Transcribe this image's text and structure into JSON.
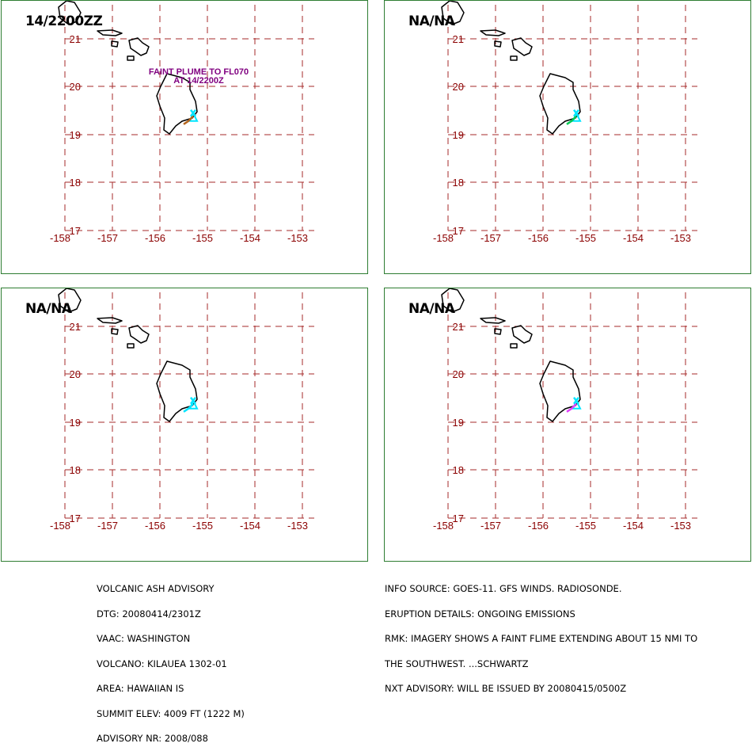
{
  "panels": [
    {
      "title": "14/2200ZZ",
      "annotation": [
        "FAINT PLUME TO FL070",
        "AT 14/2200Z"
      ],
      "plume_color": "#b5651d"
    },
    {
      "title": "NA/NA",
      "annotation": [],
      "plume_color": "#00c853"
    },
    {
      "title": "NA/NA",
      "annotation": [],
      "plume_color": "#00e5ff"
    },
    {
      "title": "NA/NA",
      "annotation": [],
      "plume_color": "#e040fb"
    }
  ],
  "axes": {
    "lon_labels": [
      "-158",
      "-157",
      "-156",
      "-155",
      "-154",
      "-153"
    ],
    "lat_labels": [
      "21",
      "20",
      "19",
      "18",
      "17"
    ],
    "label_color": "#8b0000",
    "grid_color": "#a52a2a",
    "annotation_color": "#800080",
    "volcano_marker_color": "#00e5ff"
  },
  "advisory_left": [
    "VOLCANIC ASH ADVISORY",
    "DTG: 20080414/2301Z",
    "VAAC: WASHINGTON",
    "VOLCANO: KILAUEA 1302-01",
    "AREA: HAWAIIAN IS",
    "SUMMIT ELEV: 4009 FT (1222 M)",
    "ADVISORY NR: 2008/088"
  ],
  "advisory_right": [
    "INFO SOURCE: GOES-11. GFS WINDS. RADIOSONDE.",
    "ERUPTION DETAILS: ONGOING EMISSIONS",
    "RMK: IMAGERY SHOWS A FAINT FLIME EXTENDING ABOUT 15 NMI TO",
    "THE SOUTHWEST. ...SCHWARTZ",
    "NXT ADVISORY: WILL BE ISSUED BY 20080415/0500Z"
  ]
}
